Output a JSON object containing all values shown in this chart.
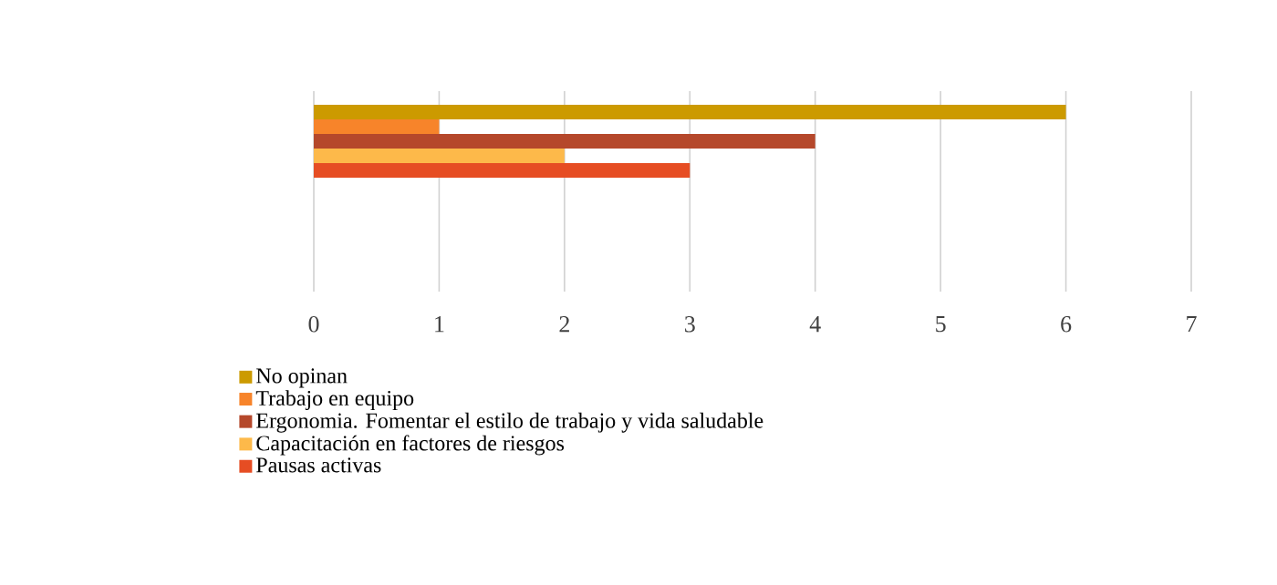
{
  "chart_data": {
    "type": "bar",
    "orientation": "horizontal",
    "categories": [
      null
    ],
    "series": [
      {
        "name": "No opinan",
        "color": "#cc9a00",
        "values": [
          6
        ]
      },
      {
        "name": "Trabajo en equipo",
        "color": "#f7842a",
        "values": [
          1
        ]
      },
      {
        "name": "Ergonomia. Fomentar el estilo de trabajo y vida saludable",
        "color": "#b5482b",
        "values": [
          4
        ]
      },
      {
        "name": "Capacitación en factores de riesgos",
        "color": "#fdb94a",
        "values": [
          2
        ]
      },
      {
        "name": "Pausas activas",
        "color": "#e64d23",
        "values": [
          3
        ]
      }
    ],
    "xlim": [
      0,
      7
    ],
    "xticks": [
      0,
      1,
      2,
      3,
      4,
      5,
      6,
      7
    ],
    "grid": "x",
    "legend": "bottom"
  }
}
